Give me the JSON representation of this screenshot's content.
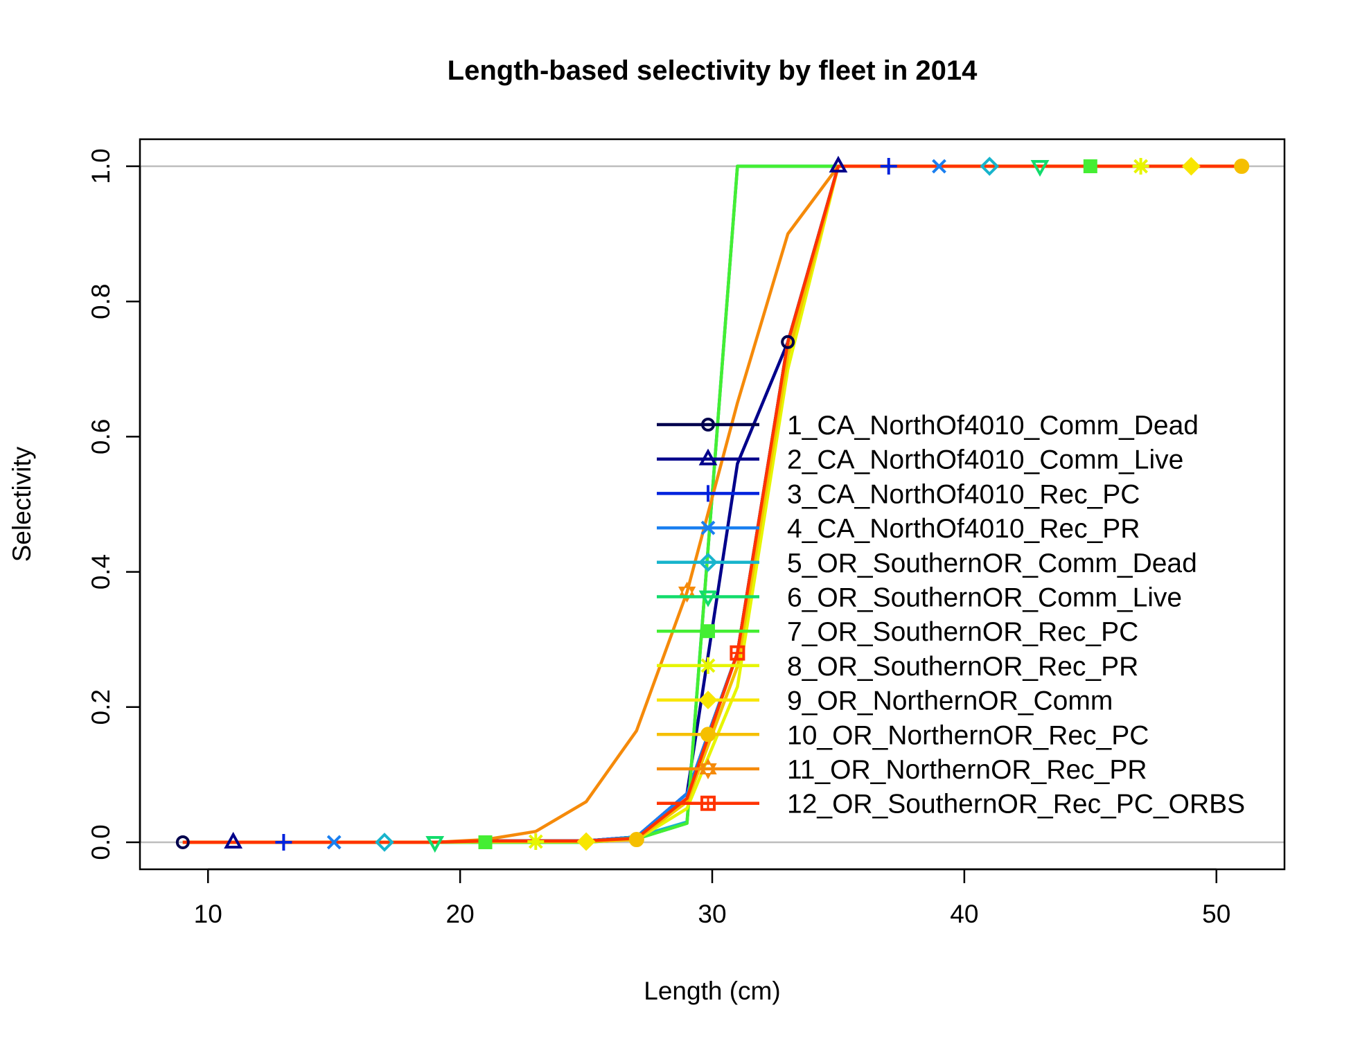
{
  "chart_data": {
    "type": "line",
    "title": "Length-based selectivity by fleet in 2014",
    "xlabel": "Length (cm)",
    "ylabel": "Selectivity",
    "xlim": [
      7.3,
      52.7
    ],
    "ylim": [
      -0.04,
      1.04
    ],
    "x_ticks": [
      10,
      20,
      30,
      40,
      50
    ],
    "y_ticks": [
      0.0,
      0.2,
      0.4,
      0.6,
      0.8,
      1.0
    ],
    "x_tick_labels": [
      "10",
      "20",
      "30",
      "40",
      "50"
    ],
    "y_tick_labels": [
      "0.0",
      "0.2",
      "0.4",
      "0.6",
      "0.8",
      "1.0"
    ],
    "reference_lines": [
      0,
      1
    ],
    "legend_position": "right-center",
    "x": [
      9,
      11,
      13,
      15,
      17,
      19,
      21,
      23,
      25,
      27,
      29,
      31,
      33,
      35,
      37,
      39,
      41,
      43,
      45,
      47,
      49,
      51
    ],
    "series": [
      {
        "name": "1_CA_NorthOf4010_Comm_Dead",
        "color": "#00004d",
        "marker": "circle",
        "values": [
          0,
          0,
          0,
          0,
          0,
          0,
          0.002,
          0.002,
          0.002,
          0.008,
          0.072,
          0.28,
          0.74,
          1,
          1,
          1,
          1,
          1,
          1,
          1,
          1,
          1
        ]
      },
      {
        "name": "2_CA_NorthOf4010_Comm_Live",
        "color": "#00008b",
        "marker": "triangle",
        "values": [
          0,
          0,
          0,
          0,
          0,
          0,
          0.002,
          0.002,
          0.002,
          0.008,
          0.072,
          0.56,
          0.74,
          1,
          1,
          1,
          1,
          1,
          1,
          1,
          1,
          1
        ]
      },
      {
        "name": "3_CA_NorthOf4010_Rec_PC",
        "color": "#0022dd",
        "marker": "plus",
        "values": [
          0,
          0,
          0,
          0,
          0,
          0,
          0.002,
          0.002,
          0.002,
          0.008,
          0.072,
          0.28,
          0.74,
          1,
          1,
          1,
          1,
          1,
          1,
          1,
          1,
          1
        ]
      },
      {
        "name": "4_CA_NorthOf4010_Rec_PR",
        "color": "#1a7ff0",
        "marker": "cross",
        "values": [
          0,
          0,
          0,
          0,
          0,
          0,
          0.002,
          0.002,
          0.002,
          0.008,
          0.072,
          0.28,
          0.74,
          1,
          1,
          1,
          1,
          1,
          1,
          1,
          1,
          1
        ]
      },
      {
        "name": "5_OR_SouthernOR_Comm_Dead",
        "color": "#18b4cc",
        "marker": "diamond",
        "values": [
          0,
          0,
          0,
          0,
          0,
          0,
          0,
          0,
          0,
          0.008,
          0.03,
          1,
          1,
          1,
          1,
          1,
          1,
          1,
          1,
          1,
          1,
          1
        ]
      },
      {
        "name": "6_OR_SouthernOR_Comm_Live",
        "color": "#12dc6c",
        "marker": "triangle-down",
        "values": [
          0,
          0,
          0,
          0,
          0,
          0,
          0,
          0,
          0,
          0.005,
          0.028,
          1,
          1,
          1,
          1,
          1,
          1,
          1,
          1,
          1,
          1,
          1
        ]
      },
      {
        "name": "7_OR_SouthernOR_Rec_PC",
        "color": "#44ee33",
        "marker": "square",
        "values": [
          0,
          0,
          0,
          0,
          0,
          0,
          0,
          0,
          0,
          0.005,
          0.028,
          1,
          1,
          1,
          1,
          1,
          1,
          1,
          1,
          1,
          1,
          1
        ]
      },
      {
        "name": "8_OR_SouthernOR_Rec_PR",
        "color": "#e6f500",
        "marker": "asterisk",
        "values": [
          0,
          0,
          0,
          0,
          0,
          0,
          0.001,
          0.001,
          0.001,
          0.004,
          0.05,
          0.23,
          0.7,
          1,
          1,
          1,
          1,
          1,
          1,
          1,
          1,
          1
        ]
      },
      {
        "name": "9_OR_NorthernOR_Comm",
        "color": "#f8e600",
        "marker": "diamond-filled",
        "values": [
          0,
          0,
          0,
          0,
          0,
          0,
          0.001,
          0.001,
          0.001,
          0.004,
          0.06,
          0.26,
          0.72,
          1,
          1,
          1,
          1,
          1,
          1,
          1,
          1,
          1
        ]
      },
      {
        "name": "10_OR_NorthernOR_Rec_PC",
        "color": "#f5bf00",
        "marker": "circle-filled",
        "values": [
          0,
          0,
          0,
          0,
          0,
          0,
          0.001,
          0.001,
          0.001,
          0.004,
          0.06,
          0.26,
          0.72,
          1,
          1,
          1,
          1,
          1,
          1,
          1,
          1,
          1
        ]
      },
      {
        "name": "11_OR_NorthernOR_Rec_PR",
        "color": "#f58a0a",
        "marker": "star-of-david",
        "values": [
          0,
          0,
          0,
          0,
          0,
          0,
          0.004,
          0.016,
          0.06,
          0.165,
          0.37,
          0.65,
          0.9,
          1,
          1,
          1,
          1,
          1,
          1,
          1,
          1,
          1
        ]
      },
      {
        "name": "12_OR_SouthernOR_Rec_PC_ORBS",
        "color": "#ff3300",
        "marker": "square-plus",
        "values": [
          0,
          0,
          0,
          0,
          0,
          0,
          0.002,
          0.002,
          0.002,
          0.006,
          0.065,
          0.28,
          0.74,
          1,
          1,
          1,
          1,
          1,
          1,
          1,
          1,
          1
        ]
      }
    ]
  }
}
